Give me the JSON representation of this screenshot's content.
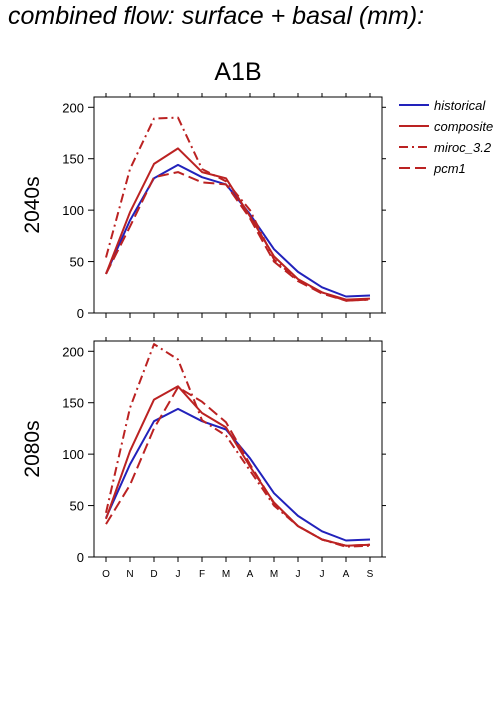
{
  "page_title": "combined flow: surface + basal (mm):",
  "scenario": "A1B",
  "months": [
    "O",
    "N",
    "D",
    "J",
    "F",
    "M",
    "A",
    "M",
    "J",
    "J",
    "A",
    "S"
  ],
  "legend": [
    {
      "name": "historical",
      "color": "#2222bb",
      "dash": "solid"
    },
    {
      "name": "composite",
      "color": "#bb2222",
      "dash": "solid"
    },
    {
      "name": "miroc_3.2",
      "color": "#bb2222",
      "dash": "dashdot"
    },
    {
      "name": "pcm1",
      "color": "#bb2222",
      "dash": "dashed"
    }
  ],
  "chart_data": [
    {
      "type": "line",
      "ylabel": "2040s",
      "ylim": [
        0,
        210
      ],
      "yticks": [
        0,
        50,
        100,
        150,
        200
      ],
      "categories": [
        "O",
        "N",
        "D",
        "J",
        "F",
        "M",
        "A",
        "M",
        "J",
        "J",
        "A",
        "S"
      ],
      "series": [
        {
          "name": "historical",
          "values": [
            38,
            90,
            131,
            144,
            132,
            125,
            96,
            62,
            40,
            25,
            16,
            17
          ]
        },
        {
          "name": "composite",
          "values": [
            38,
            98,
            145,
            160,
            137,
            131,
            94,
            55,
            33,
            20,
            13,
            14
          ]
        },
        {
          "name": "miroc_3.2",
          "values": [
            54,
            140,
            189,
            190,
            140,
            128,
            100,
            52,
            32,
            20,
            12,
            13
          ]
        },
        {
          "name": "pcm1",
          "values": [
            38,
            84,
            132,
            137,
            127,
            125,
            92,
            50,
            31,
            19,
            12,
            13
          ]
        }
      ]
    },
    {
      "type": "line",
      "ylabel": "2080s",
      "ylim": [
        0,
        210
      ],
      "yticks": [
        0,
        50,
        100,
        150,
        200
      ],
      "categories": [
        "O",
        "N",
        "D",
        "J",
        "F",
        "M",
        "A",
        "M",
        "J",
        "J",
        "A",
        "S"
      ],
      "series": [
        {
          "name": "historical",
          "values": [
            38,
            90,
            132,
            144,
            132,
            124,
            96,
            62,
            40,
            25,
            16,
            17
          ]
        },
        {
          "name": "composite",
          "values": [
            37,
            103,
            153,
            166,
            140,
            126,
            88,
            53,
            30,
            17,
            11,
            12
          ]
        },
        {
          "name": "miroc_3.2",
          "values": [
            43,
            145,
            207,
            192,
            133,
            118,
            84,
            50,
            30,
            17,
            10,
            11
          ]
        },
        {
          "name": "pcm1",
          "values": [
            32,
            70,
            125,
            165,
            151,
            131,
            90,
            52,
            30,
            17,
            11,
            12
          ]
        }
      ]
    }
  ]
}
